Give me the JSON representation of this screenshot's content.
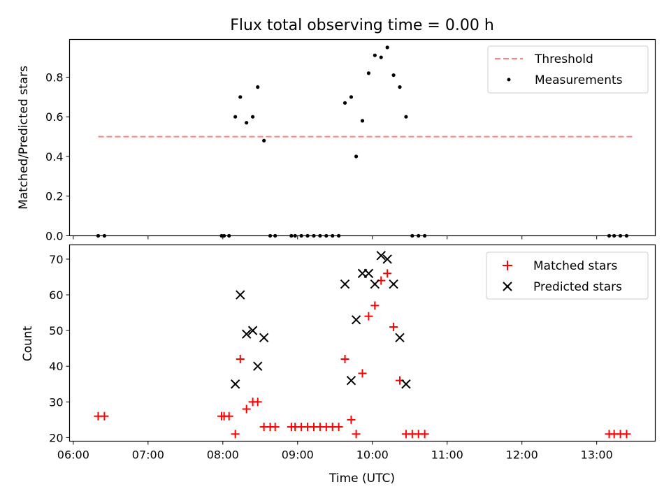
{
  "chart_data": [
    {
      "type": "scatter",
      "title": "Flux total observing time = 0.00 h",
      "xlabel": "",
      "ylabel": "Matched/Predicted stars",
      "ylim": [
        0,
        0.99
      ],
      "xlim": [
        "05:57",
        "13:47"
      ],
      "yticks": [
        "0.0",
        "0.2",
        "0.4",
        "0.6",
        "0.8"
      ],
      "legend": {
        "placement": "upper right",
        "entries": [
          "Threshold",
          "Measurements"
        ]
      },
      "threshold": {
        "name": "Threshold",
        "value": 0.5,
        "x_start": "06:20",
        "x_end": "13:30",
        "color": "#ff7f7f",
        "style": "dashed"
      },
      "series": [
        {
          "name": "Measurements",
          "color": "#000000",
          "points": [
            [
              "06:20",
              0.0
            ],
            [
              "06:25",
              0.0
            ],
            [
              "07:59",
              0.0
            ],
            [
              "08:01",
              0.0
            ],
            [
              "08:05",
              0.0
            ],
            [
              "08:10",
              0.6
            ],
            [
              "08:14",
              0.7
            ],
            [
              "08:19",
              0.57
            ],
            [
              "08:24",
              0.6
            ],
            [
              "08:28",
              0.75
            ],
            [
              "08:33",
              0.48
            ],
            [
              "08:38",
              0.0
            ],
            [
              "08:42",
              0.0
            ],
            [
              "08:55",
              0.0
            ],
            [
              "08:58",
              0.0
            ],
            [
              "09:03",
              0.0
            ],
            [
              "09:08",
              0.0
            ],
            [
              "09:13",
              0.0
            ],
            [
              "09:18",
              0.0
            ],
            [
              "09:23",
              0.0
            ],
            [
              "09:28",
              0.0
            ],
            [
              "09:33",
              0.0
            ],
            [
              "09:38",
              0.67
            ],
            [
              "09:43",
              0.7
            ],
            [
              "09:47",
              0.4
            ],
            [
              "09:52",
              0.58
            ],
            [
              "09:57",
              0.82
            ],
            [
              "10:02",
              0.91
            ],
            [
              "10:07",
              0.9
            ],
            [
              "10:12",
              0.95
            ],
            [
              "10:17",
              0.81
            ],
            [
              "10:22",
              0.75
            ],
            [
              "10:27",
              0.6
            ],
            [
              "10:32",
              0.0
            ],
            [
              "10:37",
              0.0
            ],
            [
              "10:42",
              0.0
            ],
            [
              "13:10",
              0.0
            ],
            [
              "13:14",
              0.0
            ],
            [
              "13:19",
              0.0
            ],
            [
              "13:24",
              0.0
            ]
          ]
        }
      ]
    },
    {
      "type": "scatter",
      "title": "",
      "xlabel": "Time (UTC)",
      "ylabel": "Count",
      "ylim": [
        19,
        74
      ],
      "xlim": [
        "05:57",
        "13:47"
      ],
      "xticks": [
        "06:00",
        "07:00",
        "08:00",
        "09:00",
        "10:00",
        "11:00",
        "12:00",
        "13:00"
      ],
      "yticks": [
        "20",
        "30",
        "40",
        "50",
        "60",
        "70"
      ],
      "legend": {
        "placement": "upper right",
        "entries": [
          "Matched stars",
          "Predicted stars"
        ]
      },
      "series": [
        {
          "name": "Matched stars",
          "marker": "plus",
          "color": "#ff0000",
          "points": [
            [
              "06:20",
              26
            ],
            [
              "06:25",
              26
            ],
            [
              "07:59",
              26
            ],
            [
              "08:01",
              26
            ],
            [
              "08:05",
              26
            ],
            [
              "08:10",
              21
            ],
            [
              "08:14",
              42
            ],
            [
              "08:19",
              28
            ],
            [
              "08:24",
              30
            ],
            [
              "08:28",
              30
            ],
            [
              "08:33",
              23
            ],
            [
              "08:38",
              23
            ],
            [
              "08:42",
              23
            ],
            [
              "08:55",
              23
            ],
            [
              "08:58",
              23
            ],
            [
              "09:03",
              23
            ],
            [
              "09:08",
              23
            ],
            [
              "09:13",
              23
            ],
            [
              "09:18",
              23
            ],
            [
              "09:23",
              23
            ],
            [
              "09:28",
              23
            ],
            [
              "09:33",
              23
            ],
            [
              "09:38",
              42
            ],
            [
              "09:43",
              25
            ],
            [
              "09:47",
              21
            ],
            [
              "09:52",
              38
            ],
            [
              "09:57",
              54
            ],
            [
              "10:02",
              57
            ],
            [
              "10:07",
              64
            ],
            [
              "10:12",
              66
            ],
            [
              "10:17",
              51
            ],
            [
              "10:22",
              36
            ],
            [
              "10:27",
              21
            ],
            [
              "10:32",
              21
            ],
            [
              "10:37",
              21
            ],
            [
              "10:42",
              21
            ],
            [
              "13:10",
              21
            ],
            [
              "13:14",
              21
            ],
            [
              "13:19",
              21
            ],
            [
              "13:24",
              21
            ]
          ]
        },
        {
          "name": "Predicted stars",
          "marker": "x",
          "color": "#000000",
          "points": [
            [
              "08:10",
              35
            ],
            [
              "08:14",
              60
            ],
            [
              "08:19",
              49
            ],
            [
              "08:24",
              50
            ],
            [
              "08:28",
              40
            ],
            [
              "08:33",
              48
            ],
            [
              "09:38",
              63
            ],
            [
              "09:43",
              36
            ],
            [
              "09:47",
              53
            ],
            [
              "09:52",
              66
            ],
            [
              "09:57",
              66
            ],
            [
              "10:02",
              63
            ],
            [
              "10:07",
              71
            ],
            [
              "10:12",
              70
            ],
            [
              "10:17",
              63
            ],
            [
              "10:22",
              48
            ],
            [
              "10:27",
              35
            ]
          ]
        }
      ]
    }
  ]
}
